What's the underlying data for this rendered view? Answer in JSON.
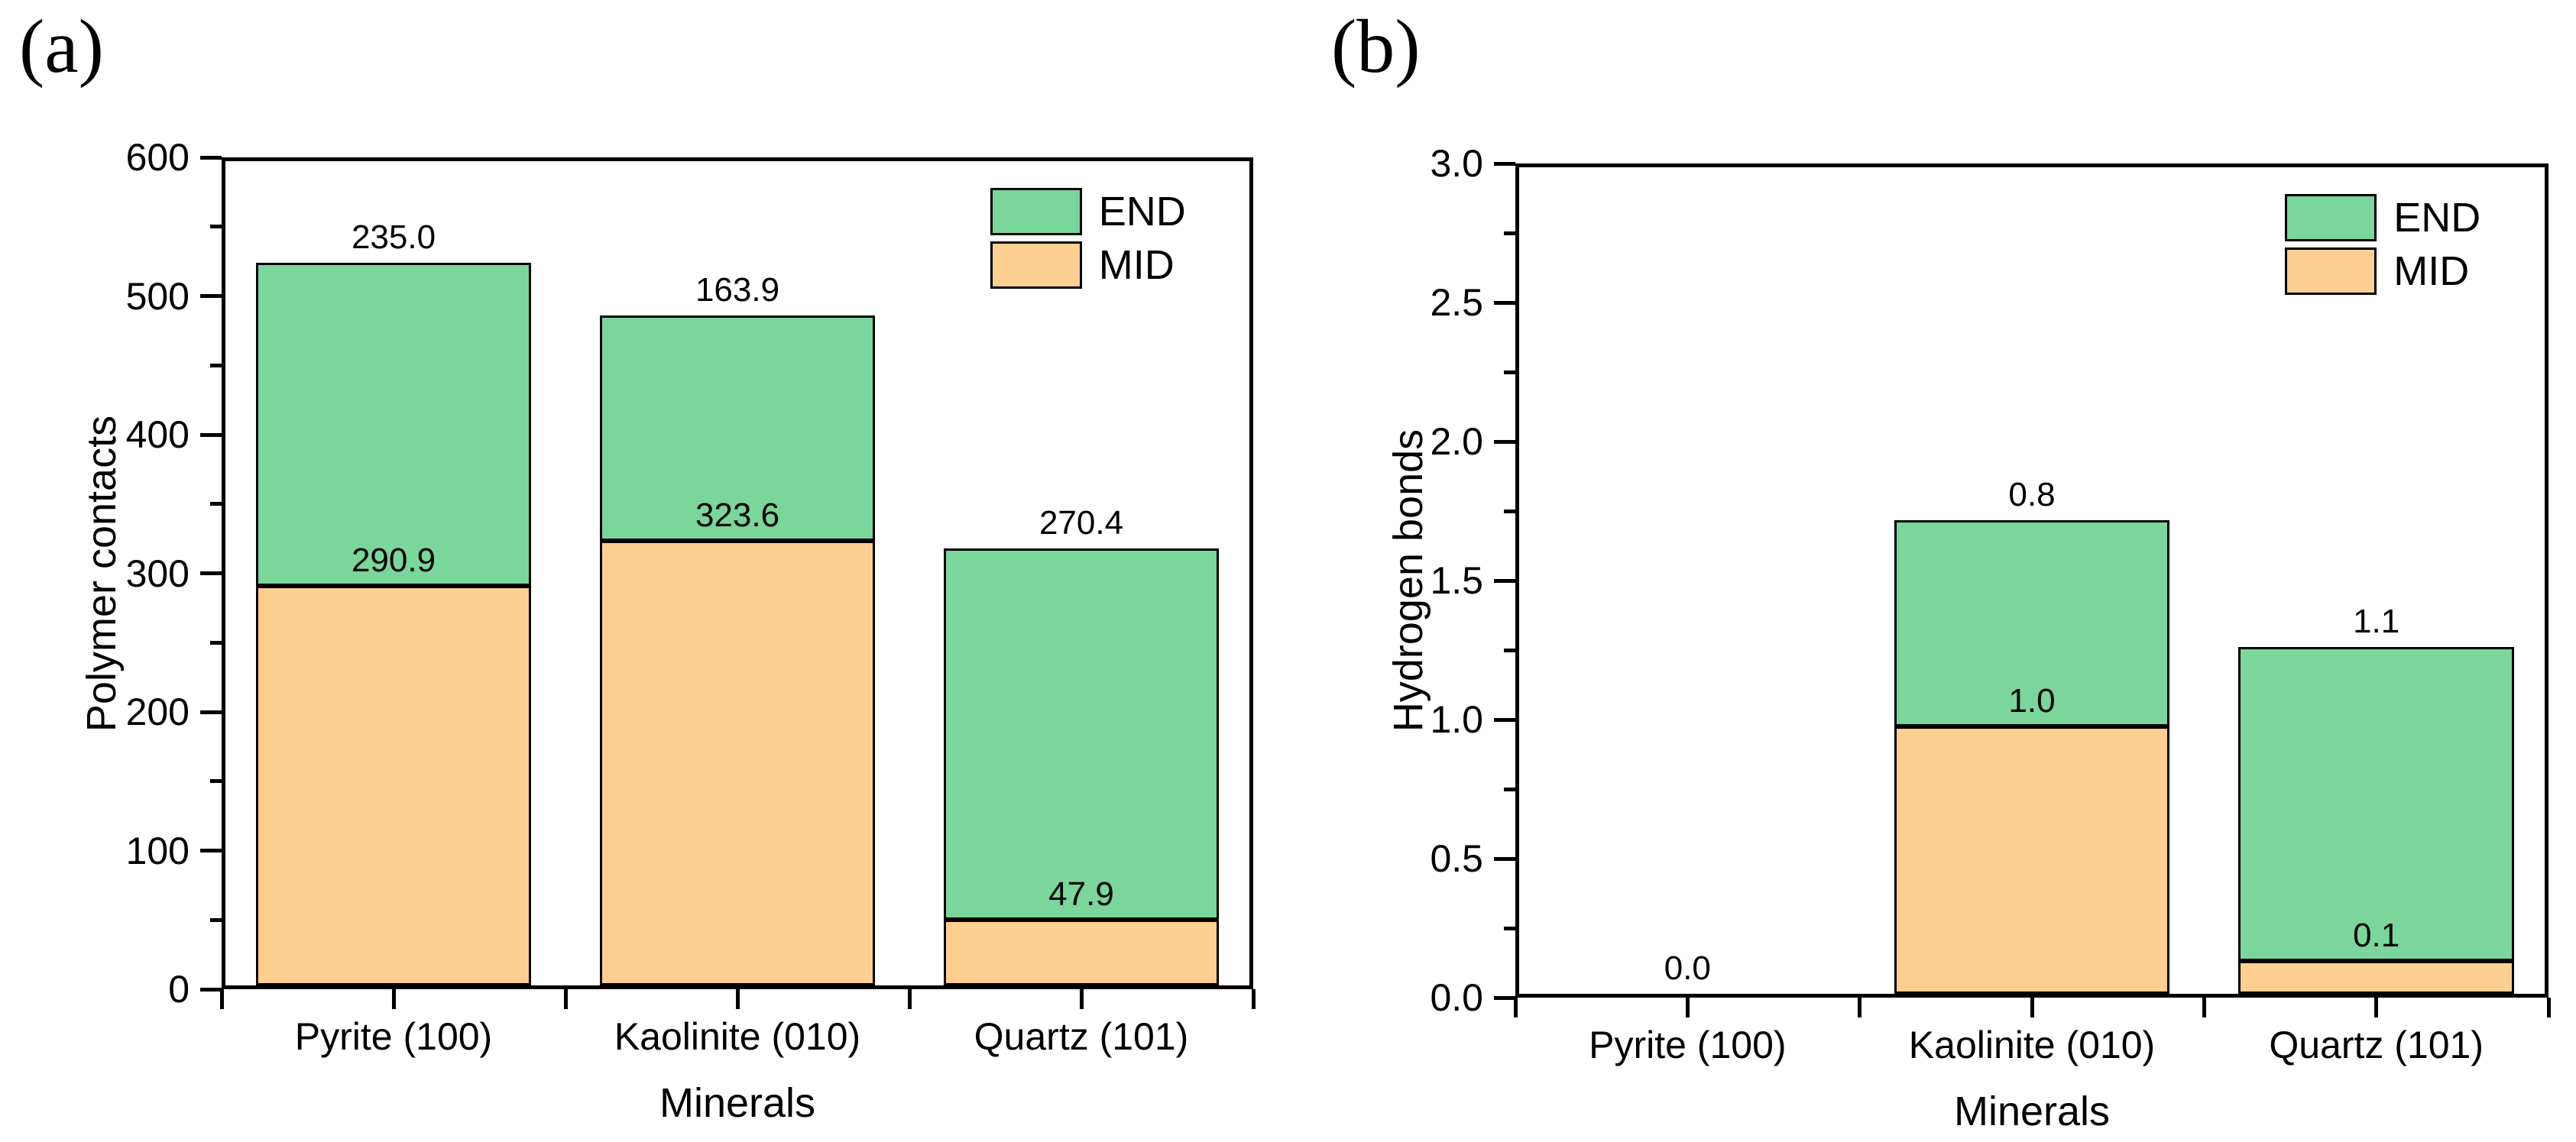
{
  "figure": {
    "background": "#ffffff",
    "colors": {
      "end": "#7bd69b",
      "mid": "#fecf90",
      "axis": "#000000"
    },
    "legend": {
      "end_label": "END",
      "mid_label": "MID"
    }
  },
  "chart_data": [
    {
      "type": "bar",
      "stacked": true,
      "panel_label": "(a)",
      "xlabel": "Minerals",
      "ylabel": "Polymer contacts",
      "ylim": [
        0,
        600
      ],
      "yticks": [
        "0",
        "100",
        "200",
        "300",
        "400",
        "500",
        "600"
      ],
      "grid": false,
      "legend_position": "top-right",
      "legend": [
        "END",
        "MID"
      ],
      "categories": [
        "Pyrite (100)",
        "Kaolinite (010)",
        "Quartz (101)"
      ],
      "series": [
        {
          "name": "MID",
          "values": [
            290.9,
            323.6,
            47.9
          ],
          "labels": [
            "290.9",
            "323.6",
            "47.9"
          ]
        },
        {
          "name": "END",
          "values": [
            235.0,
            163.9,
            270.4
          ],
          "labels": [
            "235.0",
            "163.9",
            "270.4"
          ]
        }
      ]
    },
    {
      "type": "bar",
      "stacked": true,
      "panel_label": "(b)",
      "xlabel": "Minerals",
      "ylabel": "Hydrogen bonds",
      "ylim": [
        0,
        3.0
      ],
      "yticks": [
        "0.0",
        "0.5",
        "1.0",
        "1.5",
        "2.0",
        "2.5",
        "3.0"
      ],
      "grid": false,
      "legend_position": "top-right",
      "legend": [
        "END",
        "MID"
      ],
      "categories": [
        "Pyrite (100)",
        "Kaolinite (010)",
        "Quartz (101)"
      ],
      "series": [
        {
          "name": "MID",
          "values": [
            0,
            0.97,
            0.12
          ],
          "labels": [
            "",
            "1.0",
            "0.1"
          ]
        },
        {
          "name": "END",
          "values": [
            0,
            0.75,
            1.14
          ],
          "labels": [
            "0.0",
            "0.8",
            "1.1"
          ]
        }
      ]
    }
  ]
}
